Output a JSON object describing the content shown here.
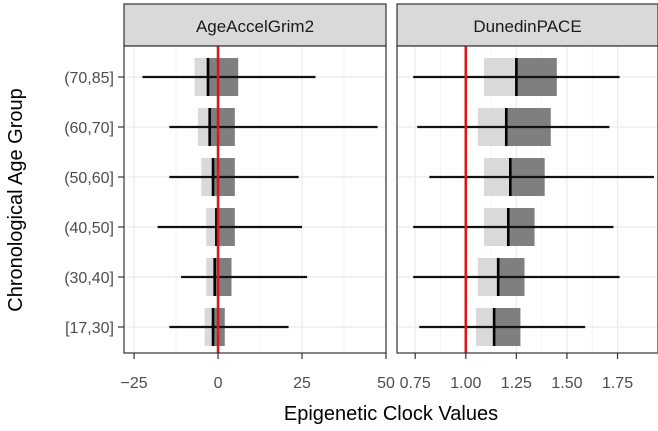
{
  "chart_data": {
    "type": "boxplot-faceted",
    "xlabel": "Epigenetic Clock Values",
    "ylabel": "Chronological Age Group",
    "categories": [
      "[17,30]",
      "(30,40]",
      "(40,50]",
      "(50,60]",
      "(60,70]",
      "(70,85]"
    ],
    "reference_line_color": "#d7191c",
    "colors": {
      "lower_box": "#d9d9d9",
      "upper_box": "#7f7f7f",
      "strip_fill": "#d9d9d9",
      "grid": "#ebebeb"
    },
    "panels": [
      {
        "title": "AgeAccelGrim2",
        "xlim": [
          -28,
          50
        ],
        "xticks": [
          -25,
          0,
          25,
          50
        ],
        "xtick_labels": [
          "−25",
          "0",
          "25",
          "50"
        ],
        "reference_line": 0,
        "boxes": [
          {
            "category": "[17,30]",
            "min": -14.5,
            "q1": -4,
            "median": -1.5,
            "q3": 2,
            "max": 21
          },
          {
            "category": "(30,40]",
            "min": -11,
            "q1": -3.5,
            "median": -1,
            "q3": 4,
            "max": 26.5
          },
          {
            "category": "(40,50]",
            "min": -18,
            "q1": -3.5,
            "median": -0.5,
            "q3": 5,
            "max": 25
          },
          {
            "category": "(50,60]",
            "min": -14.5,
            "q1": -5,
            "median": -1.5,
            "q3": 5,
            "max": 24
          },
          {
            "category": "(60,70]",
            "min": -14.5,
            "q1": -6,
            "median": -2.5,
            "q3": 5,
            "max": 47.5
          },
          {
            "category": "(70,85]",
            "min": -22.5,
            "q1": -7,
            "median": -3,
            "q3": 6,
            "max": 29
          }
        ]
      },
      {
        "title": "DunedinPACE",
        "xlim": [
          0.66,
          1.95
        ],
        "xticks": [
          0.75,
          1.0,
          1.25,
          1.5,
          1.75
        ],
        "xtick_labels": [
          "0.75",
          "1.00",
          "1.25",
          "1.50",
          "1.75"
        ],
        "reference_line": 1.0,
        "boxes": [
          {
            "category": "[17,30]",
            "min": 0.77,
            "q1": 1.05,
            "median": 1.14,
            "q3": 1.27,
            "max": 1.59
          },
          {
            "category": "(30,40]",
            "min": 0.74,
            "q1": 1.06,
            "median": 1.16,
            "q3": 1.29,
            "max": 1.76
          },
          {
            "category": "(40,50]",
            "min": 0.74,
            "q1": 1.09,
            "median": 1.21,
            "q3": 1.34,
            "max": 1.73
          },
          {
            "category": "(50,60]",
            "min": 0.82,
            "q1": 1.09,
            "median": 1.22,
            "q3": 1.39,
            "max": 1.93
          },
          {
            "category": "(60,70]",
            "min": 0.76,
            "q1": 1.06,
            "median": 1.2,
            "q3": 1.42,
            "max": 1.71
          },
          {
            "category": "(70,85]",
            "min": 0.74,
            "q1": 1.09,
            "median": 1.25,
            "q3": 1.45,
            "max": 1.76
          }
        ]
      }
    ]
  }
}
